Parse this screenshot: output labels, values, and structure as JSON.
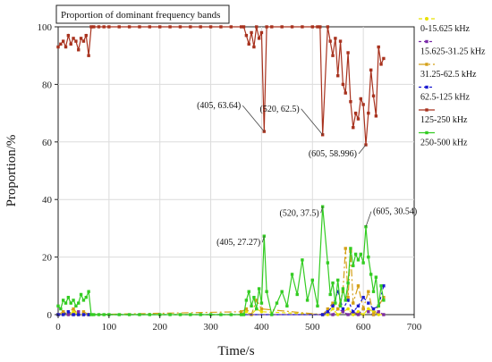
{
  "chart_data": {
    "type": "line",
    "title": "Proportion of dominant frequency bands",
    "xlabel": "Time/s",
    "ylabel": "Proportion/%",
    "xlim": [
      0,
      700
    ],
    "ylim": [
      0,
      100
    ],
    "xticks": [
      0,
      100,
      200,
      300,
      400,
      500,
      600,
      700
    ],
    "yticks": [
      0,
      20,
      40,
      60,
      80,
      100
    ],
    "grid": true,
    "legend_position": "right",
    "series": [
      {
        "name": "0-15.625 kHz",
        "color": "#e8e000",
        "marker": "circle",
        "dash": "4,3",
        "x": [
          0,
          10,
          20,
          30,
          40,
          50,
          60,
          360,
          370,
          380,
          390,
          400,
          530,
          540,
          550,
          560,
          570,
          580,
          590,
          600,
          610,
          620,
          630,
          640
        ],
        "y": [
          0,
          1,
          0,
          1,
          0,
          0,
          0,
          0,
          1,
          0,
          2,
          1,
          0,
          2,
          0,
          1,
          2,
          0,
          1,
          0,
          2,
          1,
          0,
          0
        ]
      },
      {
        "name": "15.625-31.25 kHz",
        "color": "#7a2aa8",
        "marker": "square",
        "dash": "3,3",
        "x": [
          0,
          10,
          20,
          30,
          40,
          50,
          60,
          520,
          530,
          540,
          550,
          560,
          570,
          580,
          590,
          600,
          610,
          620,
          630,
          640
        ],
        "y": [
          0,
          1,
          0,
          0,
          1,
          0,
          0,
          0,
          1,
          0,
          2,
          1,
          0,
          1,
          0,
          2,
          1,
          0,
          1,
          0
        ]
      },
      {
        "name": "31.25-62.5 kHz",
        "color": "#d4a017",
        "marker": "square",
        "dash": "8,3,2,3",
        "x": [
          0,
          10,
          20,
          30,
          40,
          50,
          60,
          360,
          370,
          380,
          390,
          400,
          520,
          530,
          540,
          550,
          560,
          565,
          570,
          575,
          580,
          590,
          600,
          610,
          620,
          630,
          640
        ],
        "y": [
          0,
          1,
          1,
          2,
          0,
          1,
          0,
          1,
          2,
          0,
          5,
          2,
          0,
          2,
          4,
          2,
          8,
          23,
          6,
          22,
          4,
          10,
          2,
          8,
          0,
          3,
          6
        ]
      },
      {
        "name": "62.5-125 kHz",
        "color": "#1a1ad0",
        "marker": "square",
        "dash": "3,3",
        "x": [
          0,
          10,
          20,
          30,
          40,
          50,
          60,
          520,
          530,
          540,
          550,
          560,
          570,
          580,
          590,
          600,
          610,
          620,
          630,
          640
        ],
        "y": [
          0,
          0,
          1,
          0,
          0,
          0,
          0,
          0,
          1,
          3,
          8,
          2,
          5,
          1,
          3,
          6,
          4,
          2,
          3,
          10
        ]
      },
      {
        "name": "125-250 kHz",
        "color": "#a8321e",
        "marker": "square",
        "dash": "",
        "x": [
          0,
          5,
          10,
          15,
          20,
          25,
          30,
          35,
          40,
          45,
          50,
          55,
          60,
          65,
          70,
          80,
          90,
          100,
          120,
          140,
          160,
          180,
          200,
          220,
          240,
          260,
          280,
          300,
          320,
          340,
          360,
          365,
          370,
          375,
          380,
          385,
          390,
          395,
          400,
          405,
          410,
          420,
          440,
          460,
          480,
          500,
          510,
          515,
          520,
          530,
          535,
          540,
          545,
          550,
          555,
          560,
          565,
          570,
          575,
          580,
          585,
          590,
          595,
          600,
          605,
          610,
          615,
          620,
          625,
          630,
          635,
          640
        ],
        "y": [
          93,
          94,
          95,
          93,
          97,
          94,
          96,
          95,
          92,
          96,
          95,
          97,
          90,
          100,
          100,
          100,
          100,
          100,
          100,
          100,
          100,
          100,
          100,
          100,
          100,
          100,
          100,
          100,
          100,
          100,
          100,
          100,
          97,
          94,
          98,
          93,
          100,
          96,
          98,
          63.64,
          100,
          100,
          100,
          100,
          100,
          100,
          100,
          100,
          62.5,
          100,
          95,
          90,
          96,
          83,
          95,
          80,
          77,
          91,
          74,
          65,
          70,
          68,
          75,
          73,
          58.996,
          70,
          85,
          76,
          69,
          93,
          87,
          89
        ]
      },
      {
        "name": "250-500 kHz",
        "color": "#33cc22",
        "marker": "square",
        "dash": "",
        "x": [
          0,
          5,
          10,
          15,
          20,
          25,
          30,
          35,
          40,
          45,
          50,
          55,
          60,
          65,
          70,
          80,
          90,
          100,
          120,
          140,
          160,
          180,
          200,
          220,
          240,
          260,
          280,
          300,
          320,
          340,
          360,
          365,
          370,
          375,
          380,
          385,
          390,
          395,
          400,
          405,
          410,
          420,
          430,
          440,
          450,
          460,
          470,
          480,
          490,
          500,
          510,
          520,
          530,
          535,
          540,
          545,
          550,
          555,
          560,
          565,
          570,
          575,
          580,
          585,
          590,
          595,
          600,
          605,
          610,
          615,
          620,
          625,
          630,
          635,
          640
        ],
        "y": [
          3,
          2,
          5,
          4,
          6,
          4,
          5,
          3,
          4,
          7,
          5,
          6,
          8,
          0,
          0,
          0,
          0,
          0,
          0,
          0,
          0,
          0,
          0,
          0,
          0,
          0,
          0,
          0,
          0,
          0,
          0,
          0,
          5,
          8,
          3,
          6,
          2,
          9,
          4,
          27.27,
          8,
          0,
          4,
          8,
          3,
          14,
          7,
          19,
          5,
          12,
          3,
          37.5,
          18,
          7,
          11,
          4,
          12,
          3,
          9,
          5,
          11,
          23,
          17,
          21,
          19,
          21,
          18,
          30.54,
          20,
          14,
          8,
          13,
          3,
          10,
          5
        ]
      }
    ],
    "annotations": [
      {
        "text": "(405, 63.64)",
        "x": 405,
        "y": 63.64,
        "anchor": "left-up"
      },
      {
        "text": "(520, 62.5)",
        "x": 520,
        "y": 62.5,
        "anchor": "left-up"
      },
      {
        "text": "(605, 58.996)",
        "x": 605,
        "y": 58.996,
        "anchor": "left-down"
      },
      {
        "text": "(405, 27.27)",
        "x": 405,
        "y": 27.27,
        "anchor": "left-down"
      },
      {
        "text": "(520, 37.5)",
        "x": 520,
        "y": 37.5,
        "anchor": "left-down"
      },
      {
        "text": "(605, 30.54)",
        "x": 605,
        "y": 30.54,
        "anchor": "right-up"
      }
    ]
  }
}
